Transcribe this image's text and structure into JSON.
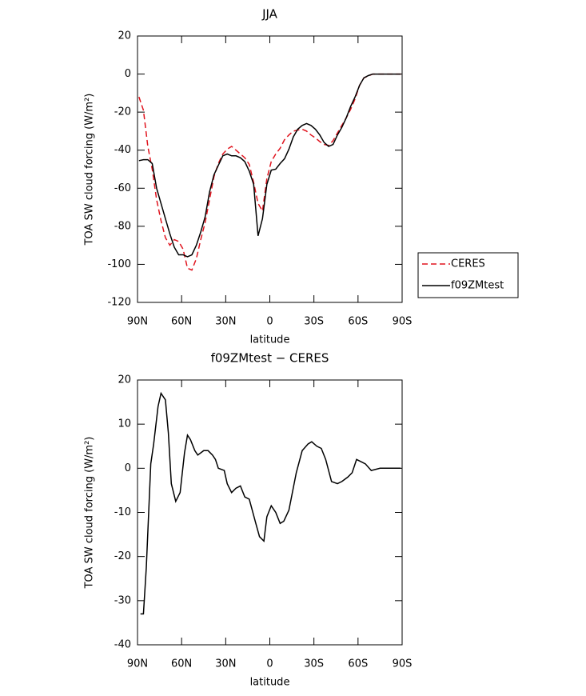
{
  "chart_data": [
    {
      "type": "line",
      "title": "JJA",
      "xlabel": "latitude",
      "ylabel": "TOA SW cloud forcing (W/m²)",
      "x": [
        89,
        86,
        83,
        80,
        77,
        74,
        71,
        68,
        65,
        62,
        59,
        56,
        53,
        50,
        47,
        44,
        41,
        38,
        35,
        32,
        29,
        26,
        23,
        20,
        17,
        14,
        11,
        8,
        5,
        2,
        -1,
        -4,
        -7,
        -10,
        -13,
        -16,
        -19,
        -22,
        -25,
        -28,
        -31,
        -34,
        -37,
        -40,
        -43,
        -46,
        -49,
        -52,
        -55,
        -58,
        -61,
        -64,
        -67,
        -70,
        -75,
        -80,
        -85,
        -89
      ],
      "series": [
        {
          "name": "CERES",
          "color": "#e0141e",
          "dashed": true,
          "values": [
            -12,
            -19,
            -38,
            -50,
            -66,
            -77,
            -86,
            -90,
            -87,
            -88,
            -92,
            -102,
            -103,
            -97,
            -87,
            -78,
            -66,
            -54,
            -47,
            -42,
            -39.5,
            -38,
            -40,
            -42,
            -44,
            -47.5,
            -57,
            -68,
            -72,
            -55,
            -46,
            -42,
            -39,
            -34.5,
            -32,
            -30,
            -29.5,
            -29,
            -30,
            -32,
            -33.5,
            -35.5,
            -37,
            -37.5,
            -35,
            -31,
            -27,
            -23,
            -18.5,
            -13,
            -6,
            -2,
            -1,
            0,
            0,
            0,
            0,
            0
          ]
        },
        {
          "name": "f09ZMtest",
          "color": "#000000",
          "dashed": false,
          "values": [
            -45.5,
            -45,
            -45,
            -47,
            -60,
            -68,
            -76,
            -84,
            -91,
            -95,
            -95,
            -96,
            -95,
            -90,
            -83,
            -75,
            -62,
            -53,
            -48,
            -43,
            -42,
            -43,
            -43,
            -44,
            -46,
            -51,
            -58,
            -85,
            -76,
            -58,
            -50.5,
            -50,
            -47,
            -44.5,
            -39.5,
            -33,
            -29,
            -27,
            -26,
            -27,
            -29,
            -32,
            -36,
            -38,
            -37,
            -32,
            -28,
            -23,
            -17,
            -12,
            -6,
            -2,
            -0.8,
            0,
            0,
            0,
            0,
            0
          ]
        }
      ],
      "xlim": [
        90,
        -90
      ],
      "xticks": [
        {
          "value": 90,
          "label": "90N"
        },
        {
          "value": 60,
          "label": "60N"
        },
        {
          "value": 30,
          "label": "30N"
        },
        0,
        {
          "value": -30,
          "label": "30S"
        },
        {
          "value": -60,
          "label": "60S"
        },
        {
          "value": -90,
          "label": "90S"
        }
      ],
      "ylim": [
        -120,
        20
      ],
      "yticks": [
        -120,
        -100,
        -80,
        -60,
        -40,
        -20,
        0,
        20
      ],
      "legend": "right"
    },
    {
      "type": "line",
      "title": "f09ZMtest − CERES",
      "xlabel": "latitude",
      "ylabel": "TOA SW cloud forcing (W/m²)",
      "x": [
        88,
        86,
        84,
        81,
        79,
        76,
        74,
        71,
        69,
        67,
        64,
        61,
        58,
        56,
        54,
        51,
        49,
        45,
        42,
        39,
        37,
        35,
        31,
        29,
        26,
        23,
        20,
        17,
        14,
        9.5,
        7,
        4,
        2,
        -1,
        -4,
        -7,
        -9.5,
        -13,
        -18,
        -22,
        -26,
        -28.5,
        -32,
        -35,
        -38,
        -42,
        -46,
        -49,
        -53,
        -56,
        -59,
        -62,
        -65,
        -69,
        -75,
        -89
      ],
      "series": [
        {
          "color": "#000000",
          "dashed": false,
          "values": [
            -33,
            -33,
            -22.5,
            1,
            5.5,
            14,
            17,
            15.5,
            8,
            -3.5,
            -7.5,
            -5.5,
            3.5,
            7.5,
            6.5,
            4,
            3,
            4,
            4,
            3,
            2,
            0,
            -0.5,
            -3.5,
            -5.5,
            -4.5,
            -4,
            -6.5,
            -7,
            -12.5,
            -15.5,
            -16.5,
            -11,
            -8.5,
            -10,
            -12.5,
            -12,
            -9.5,
            -1,
            4,
            5.5,
            6,
            5,
            4.5,
            2,
            -3,
            -3.5,
            -3,
            -2,
            -1,
            2,
            1.5,
            1,
            -0.5,
            0,
            0
          ]
        }
      ],
      "xlim": [
        90,
        -90
      ],
      "xticks": [
        {
          "value": 90,
          "label": "90N"
        },
        {
          "value": 60,
          "label": "60N"
        },
        {
          "value": 30,
          "label": "30N"
        },
        0,
        {
          "value": -30,
          "label": "30S"
        },
        {
          "value": -60,
          "label": "60S"
        },
        {
          "value": -90,
          "label": "90S"
        }
      ],
      "ylim": [
        -40,
        20
      ],
      "yticks": [
        -40,
        -30,
        -20,
        -10,
        0,
        10,
        20
      ]
    }
  ]
}
